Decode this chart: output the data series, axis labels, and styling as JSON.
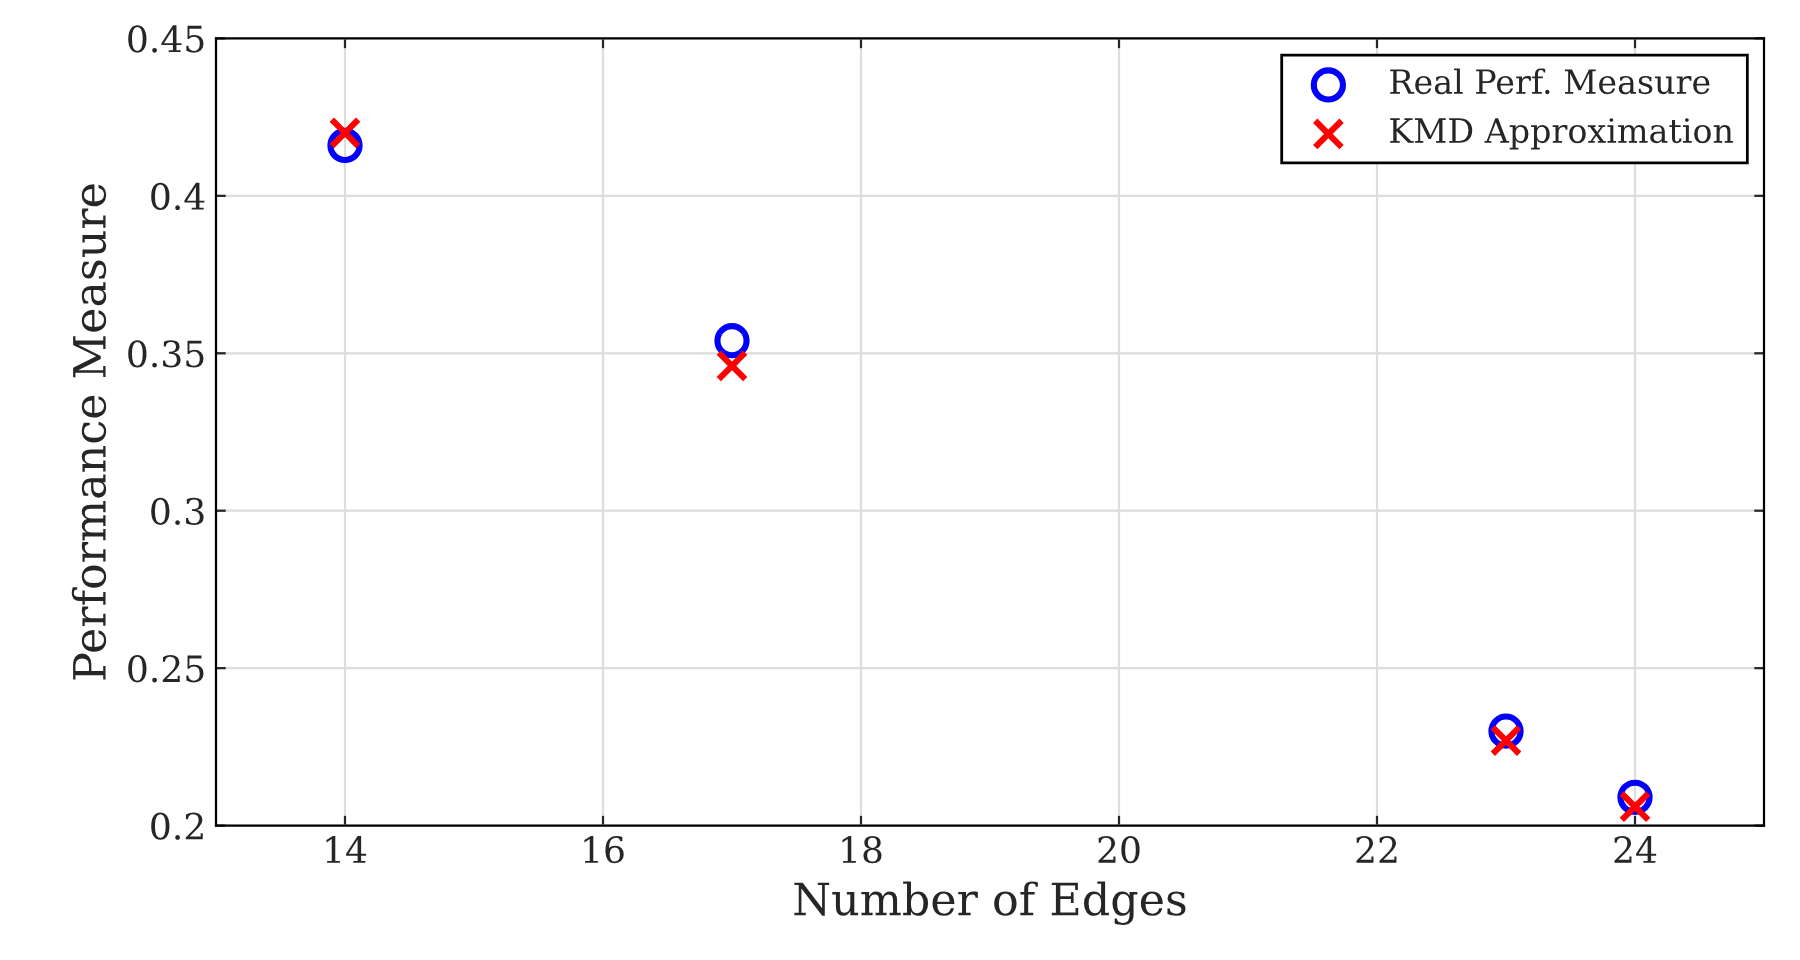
{
  "chart_data": {
    "type": "scatter",
    "xlabel": "Number of Edges",
    "ylabel": "Performance Measure",
    "x": [
      14,
      17,
      23,
      24
    ],
    "series": [
      {
        "name": "Real Perf. Measure",
        "color": "#0000ff",
        "marker": "circle",
        "values": [
          0.416,
          0.354,
          0.23,
          0.209
        ]
      },
      {
        "name": "KMD Approximation",
        "color": "#ff0000",
        "marker": "cross",
        "values": [
          0.42,
          0.346,
          0.227,
          0.206
        ]
      }
    ],
    "xlim": [
      13,
      25
    ],
    "xticks": [
      14,
      16,
      18,
      20,
      22,
      24
    ],
    "ylim": [
      0.2,
      0.45
    ],
    "yticks": [
      0.2,
      0.25,
      0.3,
      0.35,
      0.4,
      0.45
    ],
    "grid": true,
    "legend": "top right"
  }
}
